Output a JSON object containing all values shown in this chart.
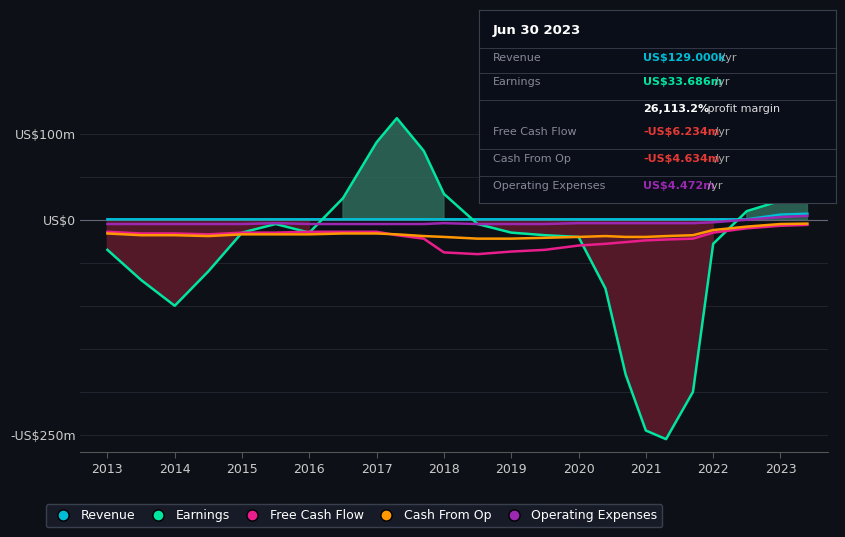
{
  "background_color": "#0d1117",
  "plot_bg_color": "#0d1117",
  "grid_color": "#2a2d3a",
  "revenue_color": "#00bcd4",
  "earnings_color": "#00e5a0",
  "earnings_fill_pos_color": "#2d6b5a",
  "earnings_fill_neg_color": "#5a1a2a",
  "free_cash_flow_color": "#e91e8c",
  "cash_from_op_color": "#ff9800",
  "operating_expenses_color": "#9c27b0",
  "ylim_min": -270,
  "ylim_max": 140,
  "ylabel_top": "US$100m",
  "ylabel_zero": "US$0",
  "ylabel_bottom": "-US$250m",
  "legend_labels": [
    "Revenue",
    "Earnings",
    "Free Cash Flow",
    "Cash From Op",
    "Operating Expenses"
  ],
  "legend_colors": [
    "#00bcd4",
    "#00e5a0",
    "#e91e8c",
    "#ff9800",
    "#9c27b0"
  ],
  "info_title": "Jun 30 2023",
  "info_rows": [
    {
      "label": "Revenue",
      "value": "US$129.000k",
      "suffix": " /yr",
      "value_color": "#00bcd4"
    },
    {
      "label": "Earnings",
      "value": "US$33.686m",
      "suffix": " /yr",
      "value_color": "#00e5a0"
    },
    {
      "label": "",
      "value": "26,113.2%",
      "suffix": " profit margin",
      "value_color": "#ffffff"
    },
    {
      "label": "Free Cash Flow",
      "value": "-US$6.234m",
      "suffix": " /yr",
      "value_color": "#e53935"
    },
    {
      "label": "Cash From Op",
      "value": "-US$4.634m",
      "suffix": " /yr",
      "value_color": "#e53935"
    },
    {
      "label": "Operating Expenses",
      "value": "US$4.472m",
      "suffix": " /yr",
      "value_color": "#9c27b0"
    }
  ]
}
